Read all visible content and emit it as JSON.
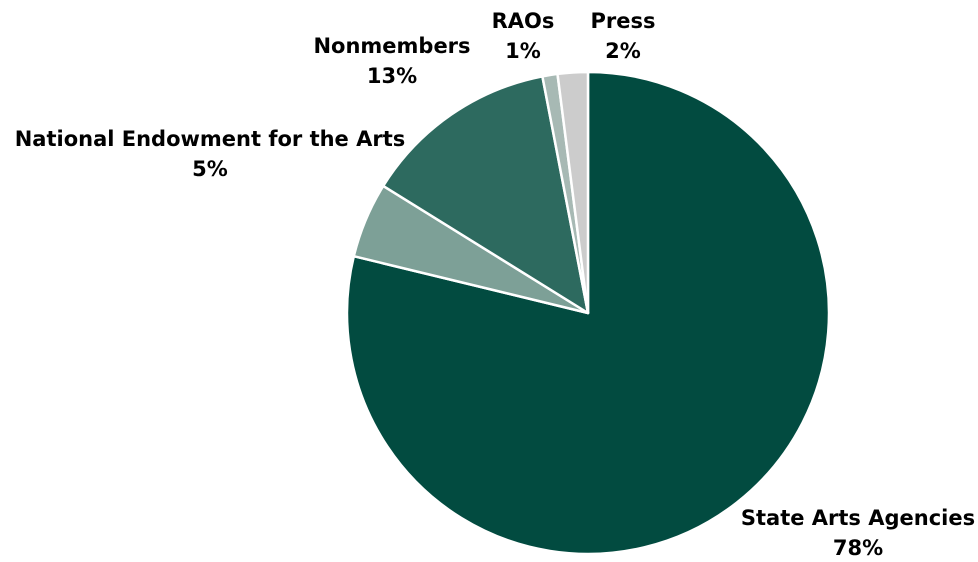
{
  "chart_data": {
    "type": "pie",
    "title": "",
    "start_angle_deg": 0,
    "direction": "clockwise",
    "slices": [
      {
        "name": "State Arts Agencies",
        "value": 78,
        "label": "78%",
        "color": "#024b40"
      },
      {
        "name": "National Endowment for the Arts",
        "value": 5,
        "label": "5%",
        "color": "#7da097"
      },
      {
        "name": "Nonmembers",
        "value": 13,
        "label": "13%",
        "color": "#2d6a5f"
      },
      {
        "name": "RAOs",
        "value": 1,
        "label": "1%",
        "color": "#a7b9b4"
      },
      {
        "name": "Press",
        "value": 2,
        "label": "2%",
        "color": "#cccccc"
      }
    ],
    "slice_border_color": "#ffffff"
  }
}
